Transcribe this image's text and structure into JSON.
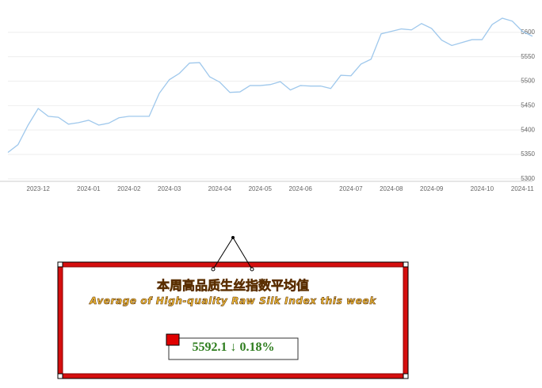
{
  "chart_data": {
    "type": "line",
    "categories": [
      null,
      null,
      null,
      "2023-12",
      null,
      null,
      null,
      null,
      "2024-01",
      null,
      null,
      null,
      "2024-02",
      null,
      null,
      null,
      "2024-03",
      null,
      null,
      null,
      null,
      "2024-04",
      null,
      null,
      null,
      "2024-05",
      null,
      null,
      null,
      "2024-06",
      null,
      null,
      null,
      null,
      "2024-07",
      null,
      null,
      null,
      "2024-08",
      null,
      null,
      null,
      "2024-09",
      null,
      null,
      null,
      null,
      "2024-10",
      null,
      null,
      null,
      "2024-11",
      null
    ],
    "values": [
      5354,
      5370,
      5410,
      5444,
      5428,
      5426,
      5412,
      5415,
      5420,
      5410,
      5414,
      5425,
      5428,
      5428,
      5428,
      5475,
      5503,
      5516,
      5537,
      5538,
      5509,
      5498,
      5477,
      5478,
      5491,
      5491,
      5493,
      5499,
      5482,
      5491,
      5490,
      5490,
      5485,
      5512,
      5511,
      5535,
      5545,
      5597,
      5602,
      5607,
      5605,
      5618,
      5608,
      5584,
      5573,
      5579,
      5585,
      5585,
      5616,
      5629,
      5623,
      5602,
      5592
    ],
    "color": "#9fc8ec",
    "ylim": [
      5290,
      5650
    ],
    "yticks": [
      5300,
      5350,
      5400,
      5450,
      5500,
      5550,
      5600
    ],
    "grid": true
  },
  "panel": {
    "title": "本周高品质生丝指数平均值",
    "subtitle": "Average of High-quality Raw Silk Index this week",
    "value": "5592.1",
    "change": "↓ 0.18%"
  }
}
